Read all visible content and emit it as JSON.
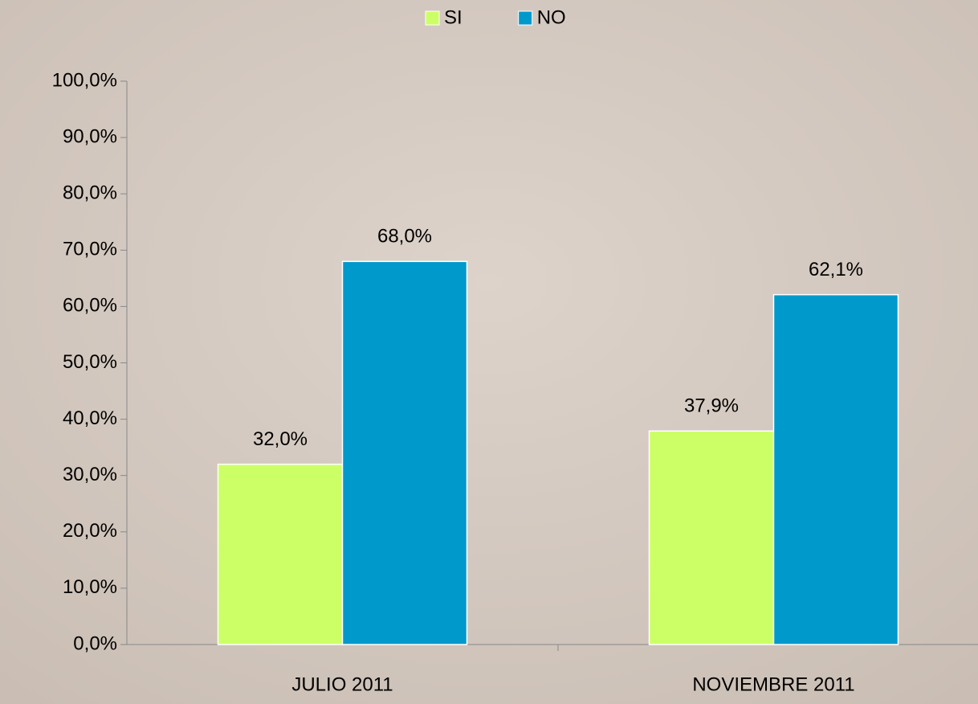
{
  "chart_data": {
    "type": "bar",
    "categories": [
      "JULIO 2011",
      "NOVIEMBRE 2011"
    ],
    "series": [
      {
        "name": "SI",
        "color": "#ccff66",
        "values": [
          32.0,
          37.9
        ],
        "value_labels": [
          "32,0%",
          "37,9%"
        ]
      },
      {
        "name": "NO",
        "color": "#0099cc",
        "values": [
          68.0,
          62.1
        ],
        "value_labels": [
          "68,0%",
          "62,1%"
        ]
      }
    ],
    "ylim": [
      0,
      100
    ],
    "yticks": [
      {
        "value": 0,
        "label": "0,0%"
      },
      {
        "value": 10,
        "label": "10,0%"
      },
      {
        "value": 20,
        "label": "20,0%"
      },
      {
        "value": 30,
        "label": "30,0%"
      },
      {
        "value": 40,
        "label": "40,0%"
      },
      {
        "value": 50,
        "label": "50,0%"
      },
      {
        "value": 60,
        "label": "60,0%"
      },
      {
        "value": 70,
        "label": "70,0%"
      },
      {
        "value": 80,
        "label": "80,0%"
      },
      {
        "value": 90,
        "label": "90,0%"
      },
      {
        "value": 100,
        "label": "100,0%"
      }
    ],
    "legend": "top"
  }
}
